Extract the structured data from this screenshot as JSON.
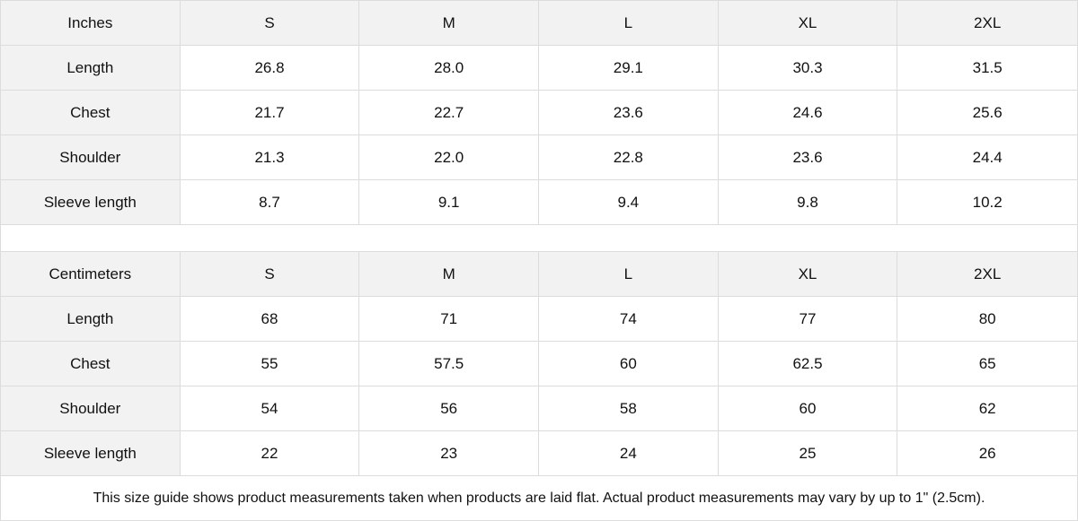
{
  "tables": [
    {
      "unit": "Inches",
      "sizes": [
        "S",
        "M",
        "L",
        "XL",
        "2XL"
      ],
      "rows": [
        {
          "label": "Length",
          "values": [
            "26.8",
            "28.0",
            "29.1",
            "30.3",
            "31.5"
          ]
        },
        {
          "label": "Chest",
          "values": [
            "21.7",
            "22.7",
            "23.6",
            "24.6",
            "25.6"
          ]
        },
        {
          "label": "Shoulder",
          "values": [
            "21.3",
            "22.0",
            "22.8",
            "23.6",
            "24.4"
          ]
        },
        {
          "label": "Sleeve length",
          "values": [
            "8.7",
            "9.1",
            "9.4",
            "9.8",
            "10.2"
          ]
        }
      ]
    },
    {
      "unit": "Centimeters",
      "sizes": [
        "S",
        "M",
        "L",
        "XL",
        "2XL"
      ],
      "rows": [
        {
          "label": "Length",
          "values": [
            "68",
            "71",
            "74",
            "77",
            "80"
          ]
        },
        {
          "label": "Chest",
          "values": [
            "55",
            "57.5",
            "60",
            "62.5",
            "65"
          ]
        },
        {
          "label": "Shoulder",
          "values": [
            "54",
            "56",
            "58",
            "60",
            "62"
          ]
        },
        {
          "label": "Sleeve length",
          "values": [
            "22",
            "23",
            "24",
            "25",
            "26"
          ]
        }
      ]
    }
  ],
  "note": "This size guide shows product measurements taken when products are laid flat.  Actual product measurements may vary by up to 1\" (2.5cm).",
  "colors": {
    "header_bg": "#f2f2f2",
    "border": "#dcdcdc"
  }
}
